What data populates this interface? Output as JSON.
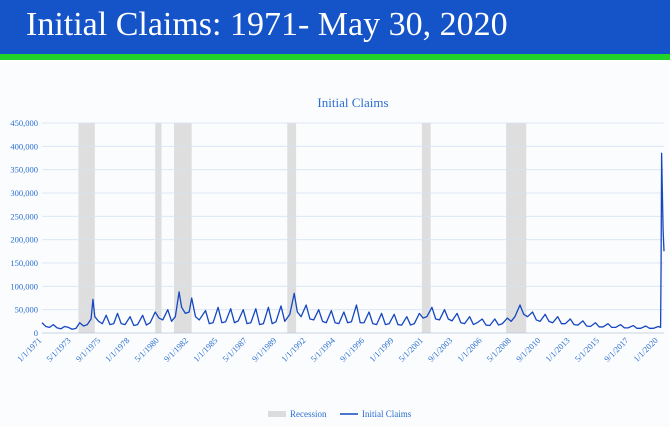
{
  "banner": {
    "title": "Initial Claims: 1971- May 30, 2020",
    "color": "#1553c8",
    "stripe_color": "#22d32a"
  },
  "chart_data": {
    "type": "line",
    "title": "Initial Claims",
    "ylim": [
      0,
      450000
    ],
    "y_ticks": [
      0,
      50000,
      100000,
      150000,
      200000,
      250000,
      300000,
      350000,
      400000,
      450000
    ],
    "y_tick_labels": [
      "0",
      "50,000",
      "100,000",
      "150,000",
      "200,000",
      "250,000",
      "300,000",
      "350,000",
      "400,000",
      "450,000"
    ],
    "xlim": [
      1971.0,
      2020.45
    ],
    "x_tick_labels": [
      "1/1/1971",
      "5/1/1973",
      "9/1/1975",
      "1/1/1978",
      "5/1/1980",
      "9/1/1982",
      "1/1/1985",
      "5/1/1987",
      "9/1/1989",
      "1/1/1992",
      "5/1/1994",
      "9/1/1996",
      "1/1/1999",
      "5/1/2001",
      "9/1/2003",
      "1/1/2006",
      "5/1/2008",
      "9/1/2010",
      "1/1/2013",
      "5/1/2015",
      "9/1/2017",
      "1/1/2020"
    ],
    "x_tick_values": [
      1971.0,
      1973.33,
      1975.67,
      1978.0,
      1980.33,
      1982.67,
      1985.0,
      1987.33,
      1989.67,
      1992.0,
      1994.33,
      1996.67,
      1999.0,
      2001.33,
      2003.67,
      2006.0,
      2008.33,
      2010.67,
      2013.0,
      2015.33,
      2017.67,
      2020.0
    ],
    "grid": true,
    "legend_position": "bottom",
    "recessions": [
      [
        1973.9,
        1975.2
      ],
      [
        1980.0,
        1980.5
      ],
      [
        1981.5,
        1982.9
      ],
      [
        1990.5,
        1991.2
      ],
      [
        2001.2,
        2001.9
      ],
      [
        2007.9,
        2009.5
      ]
    ],
    "series": [
      {
        "name": "Initial Claims",
        "color": "#1547c0",
        "points": [
          [
            1971.0,
            22000
          ],
          [
            1971.3,
            14000
          ],
          [
            1971.6,
            12000
          ],
          [
            1971.9,
            18000
          ],
          [
            1972.2,
            11000
          ],
          [
            1972.5,
            9000
          ],
          [
            1972.8,
            14000
          ],
          [
            1973.1,
            12000
          ],
          [
            1973.4,
            8000
          ],
          [
            1973.7,
            10000
          ],
          [
            1974.0,
            22000
          ],
          [
            1974.3,
            15000
          ],
          [
            1974.6,
            18000
          ],
          [
            1974.9,
            30000
          ],
          [
            1975.05,
            72000
          ],
          [
            1975.2,
            35000
          ],
          [
            1975.5,
            25000
          ],
          [
            1975.8,
            20000
          ],
          [
            1976.1,
            38000
          ],
          [
            1976.4,
            18000
          ],
          [
            1976.7,
            20000
          ],
          [
            1977.0,
            42000
          ],
          [
            1977.3,
            20000
          ],
          [
            1977.6,
            18000
          ],
          [
            1978.0,
            35000
          ],
          [
            1978.3,
            16000
          ],
          [
            1978.6,
            18000
          ],
          [
            1979.0,
            38000
          ],
          [
            1979.3,
            17000
          ],
          [
            1979.6,
            22000
          ],
          [
            1980.0,
            45000
          ],
          [
            1980.3,
            32000
          ],
          [
            1980.6,
            28000
          ],
          [
            1981.0,
            50000
          ],
          [
            1981.3,
            25000
          ],
          [
            1981.6,
            35000
          ],
          [
            1981.9,
            88000
          ],
          [
            1982.1,
            55000
          ],
          [
            1982.4,
            42000
          ],
          [
            1982.7,
            45000
          ],
          [
            1982.9,
            75000
          ],
          [
            1983.2,
            35000
          ],
          [
            1983.5,
            28000
          ],
          [
            1984.0,
            48000
          ],
          [
            1984.3,
            20000
          ],
          [
            1984.6,
            22000
          ],
          [
            1985.0,
            55000
          ],
          [
            1985.3,
            22000
          ],
          [
            1985.6,
            24000
          ],
          [
            1986.0,
            52000
          ],
          [
            1986.3,
            22000
          ],
          [
            1986.6,
            26000
          ],
          [
            1987.0,
            50000
          ],
          [
            1987.3,
            20000
          ],
          [
            1987.6,
            22000
          ],
          [
            1988.0,
            52000
          ],
          [
            1988.3,
            18000
          ],
          [
            1988.6,
            20000
          ],
          [
            1989.0,
            55000
          ],
          [
            1989.3,
            20000
          ],
          [
            1989.6,
            24000
          ],
          [
            1990.0,
            58000
          ],
          [
            1990.3,
            25000
          ],
          [
            1990.7,
            40000
          ],
          [
            1991.05,
            85000
          ],
          [
            1991.3,
            45000
          ],
          [
            1991.6,
            35000
          ],
          [
            1992.0,
            60000
          ],
          [
            1992.3,
            30000
          ],
          [
            1992.6,
            28000
          ],
          [
            1993.0,
            50000
          ],
          [
            1993.3,
            25000
          ],
          [
            1993.6,
            22000
          ],
          [
            1994.0,
            48000
          ],
          [
            1994.3,
            22000
          ],
          [
            1994.6,
            20000
          ],
          [
            1995.0,
            45000
          ],
          [
            1995.3,
            22000
          ],
          [
            1995.6,
            24000
          ],
          [
            1996.0,
            60000
          ],
          [
            1996.3,
            22000
          ],
          [
            1996.6,
            22000
          ],
          [
            1997.0,
            45000
          ],
          [
            1997.3,
            20000
          ],
          [
            1997.6,
            18000
          ],
          [
            1998.0,
            42000
          ],
          [
            1998.3,
            18000
          ],
          [
            1998.6,
            20000
          ],
          [
            1999.0,
            40000
          ],
          [
            1999.3,
            18000
          ],
          [
            1999.6,
            17000
          ],
          [
            2000.0,
            35000
          ],
          [
            2000.3,
            17000
          ],
          [
            2000.6,
            20000
          ],
          [
            2001.0,
            42000
          ],
          [
            2001.3,
            32000
          ],
          [
            2001.6,
            35000
          ],
          [
            2002.0,
            55000
          ],
          [
            2002.3,
            30000
          ],
          [
            2002.6,
            28000
          ],
          [
            2003.0,
            50000
          ],
          [
            2003.3,
            30000
          ],
          [
            2003.6,
            26000
          ],
          [
            2004.0,
            42000
          ],
          [
            2004.3,
            22000
          ],
          [
            2004.6,
            20000
          ],
          [
            2005.0,
            35000
          ],
          [
            2005.3,
            18000
          ],
          [
            2005.6,
            22000
          ],
          [
            2006.0,
            30000
          ],
          [
            2006.3,
            17000
          ],
          [
            2006.6,
            16000
          ],
          [
            2007.0,
            30000
          ],
          [
            2007.3,
            17000
          ],
          [
            2007.6,
            20000
          ],
          [
            2008.0,
            32000
          ],
          [
            2008.3,
            25000
          ],
          [
            2008.6,
            35000
          ],
          [
            2009.0,
            60000
          ],
          [
            2009.3,
            40000
          ],
          [
            2009.6,
            35000
          ],
          [
            2010.0,
            45000
          ],
          [
            2010.3,
            28000
          ],
          [
            2010.6,
            25000
          ],
          [
            2011.0,
            40000
          ],
          [
            2011.3,
            25000
          ],
          [
            2011.6,
            22000
          ],
          [
            2012.0,
            35000
          ],
          [
            2012.3,
            20000
          ],
          [
            2012.6,
            20000
          ],
          [
            2013.0,
            30000
          ],
          [
            2013.3,
            18000
          ],
          [
            2013.6,
            17000
          ],
          [
            2014.0,
            26000
          ],
          [
            2014.3,
            15000
          ],
          [
            2014.6,
            14000
          ],
          [
            2015.0,
            22000
          ],
          [
            2015.3,
            13000
          ],
          [
            2015.6,
            13000
          ],
          [
            2016.0,
            20000
          ],
          [
            2016.3,
            12000
          ],
          [
            2016.6,
            12000
          ],
          [
            2017.0,
            18000
          ],
          [
            2017.3,
            11000
          ],
          [
            2017.6,
            11000
          ],
          [
            2018.0,
            16000
          ],
          [
            2018.3,
            10000
          ],
          [
            2018.6,
            10000
          ],
          [
            2019.0,
            15000
          ],
          [
            2019.3,
            10000
          ],
          [
            2019.6,
            10000
          ],
          [
            2020.0,
            14000
          ],
          [
            2020.18,
            12000
          ],
          [
            2020.22,
            150000
          ],
          [
            2020.26,
            385000
          ],
          [
            2020.32,
            300000
          ],
          [
            2020.38,
            220000
          ],
          [
            2020.45,
            175000
          ]
        ]
      }
    ],
    "legend": [
      {
        "label": "Recession",
        "kind": "box",
        "color": "#dcdcdc"
      },
      {
        "label": "Initial Claims",
        "kind": "line",
        "color": "#1547c0"
      }
    ]
  }
}
